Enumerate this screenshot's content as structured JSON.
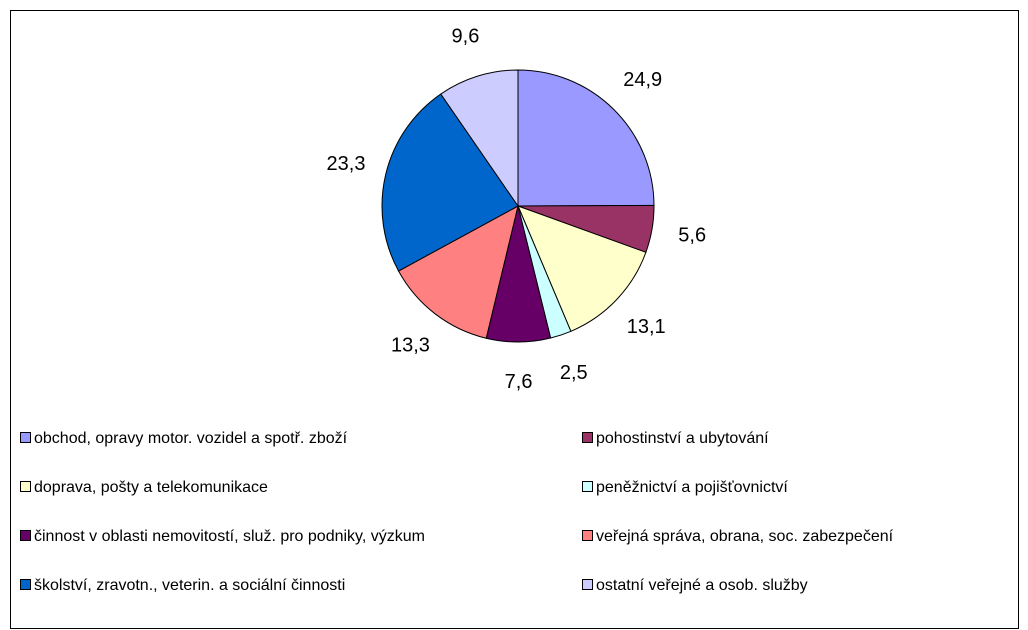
{
  "chart_data": {
    "type": "pie",
    "categories": [
      "obchod, opravy motor. vozidel a spotř. zboží",
      "pohostinství a ubytování",
      "doprava, pošty a telekomunikace",
      "peněžnictví a pojišťovnictví",
      "činnost v oblasti nemovitostí, služ. pro podniky, výzkum",
      "veřejná správa, obrana, soc. zabezpečení",
      "školství, zravotn., veterin. a sociální činnosti",
      "ostatní veřejné a osob. služby"
    ],
    "values": [
      24.9,
      5.6,
      13.1,
      2.5,
      7.6,
      13.3,
      23.3,
      9.6
    ],
    "value_labels": [
      "24,9",
      "5,6",
      "13,1",
      "2,5",
      "7,6",
      "13,3",
      "23,3",
      "9,6"
    ],
    "colors": [
      "#9999ff",
      "#993366",
      "#ffffcc",
      "#ccffff",
      "#660066",
      "#ff8080",
      "#0066cc",
      "#ccccff"
    ]
  }
}
